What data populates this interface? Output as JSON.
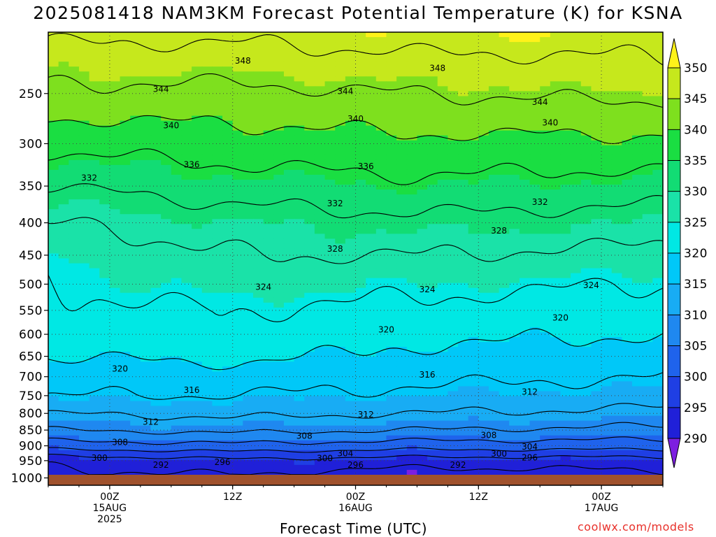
{
  "title": "2025081418 NAM3KM Forecast Potential Temperature (K) for KSNA",
  "xlabel": "Forecast Time (UTC)",
  "credit": "coolwx.com/models",
  "chart_data": {
    "type": "heatmap",
    "title": "2025081418 NAM3KM Forecast Potential Temperature (K) for KSNA",
    "xlabel": "Forecast Time (UTC)",
    "ylabel": "",
    "y_axis": "pressure (hPa), log scale, decreasing upward",
    "yticks": [
      250,
      300,
      350,
      400,
      450,
      500,
      550,
      600,
      650,
      700,
      750,
      800,
      850,
      900,
      950,
      1000
    ],
    "xticks": [
      {
        "hour": 6,
        "lines": [
          "00Z",
          "15AUG",
          "2025"
        ]
      },
      {
        "hour": 18,
        "lines": [
          "12Z"
        ]
      },
      {
        "hour": 30,
        "lines": [
          "00Z",
          "16AUG"
        ]
      },
      {
        "hour": 42,
        "lines": [
          "12Z"
        ]
      },
      {
        "hour": 54,
        "lines": [
          "00Z",
          "17AUG"
        ]
      }
    ],
    "xlim_hours": [
      0,
      60
    ],
    "ylim_hpa": [
      1000,
      200
    ],
    "grid": true,
    "colorbar": {
      "levels": [
        290,
        295,
        300,
        305,
        310,
        315,
        320,
        325,
        330,
        335,
        340,
        345,
        350
      ],
      "labels": [
        "350",
        "345",
        "340",
        "335",
        "330",
        "325",
        "320",
        "315",
        "310",
        "305",
        "300",
        "295",
        "290"
      ],
      "colors": [
        "#7d1fe0",
        "#2020d8",
        "#1f3fe4",
        "#1f63ec",
        "#1f88f0",
        "#18acf4",
        "#00c8f8",
        "#00e8e4",
        "#1ae2a8",
        "#12dc74",
        "#1ade42",
        "#7ee01e",
        "#c6e81c",
        "#fff21a"
      ]
    },
    "contour_values": [
      292,
      296,
      300,
      304,
      308,
      312,
      316,
      320,
      324,
      328,
      332,
      336,
      340,
      344,
      348
    ],
    "theta_profile_K": {
      "pressure_hpa": [
        1000,
        950,
        900,
        850,
        800,
        750,
        700,
        650,
        600,
        550,
        500,
        450,
        400,
        350,
        300,
        250,
        200
      ],
      "hour_0": [
        291,
        293,
        302,
        308,
        312,
        316,
        318,
        320,
        322,
        323,
        324,
        325,
        328,
        332,
        337,
        343,
        349
      ],
      "hour_18": [
        292,
        295,
        303,
        309,
        313,
        316,
        318,
        321,
        323,
        324,
        326,
        328,
        330,
        334,
        338,
        343,
        349
      ],
      "hour_36": [
        290,
        294,
        302,
        308,
        312,
        315,
        317,
        319,
        321,
        323,
        325,
        328,
        331,
        335,
        339,
        344,
        350
      ],
      "hour_60": [
        291,
        294,
        302,
        307,
        311,
        314,
        316,
        318,
        320,
        322,
        324,
        327,
        330,
        334,
        339,
        345,
        350
      ]
    },
    "contour_labels": [
      {
        "text": "348",
        "hour": 19,
        "hpa": 222
      },
      {
        "text": "348",
        "hour": 38,
        "hpa": 228
      },
      {
        "text": "344",
        "hour": 11,
        "hpa": 246
      },
      {
        "text": "344",
        "hour": 29,
        "hpa": 248
      },
      {
        "text": "344",
        "hour": 48,
        "hpa": 258
      },
      {
        "text": "340",
        "hour": 12,
        "hpa": 281
      },
      {
        "text": "340",
        "hour": 30,
        "hpa": 274
      },
      {
        "text": "340",
        "hour": 49,
        "hpa": 278
      },
      {
        "text": "336",
        "hour": 14,
        "hpa": 324
      },
      {
        "text": "336",
        "hour": 31,
        "hpa": 326
      },
      {
        "text": "332",
        "hour": 4,
        "hpa": 340
      },
      {
        "text": "332",
        "hour": 28,
        "hpa": 373
      },
      {
        "text": "332",
        "hour": 48,
        "hpa": 371
      },
      {
        "text": "328",
        "hour": 28,
        "hpa": 440
      },
      {
        "text": "328",
        "hour": 44,
        "hpa": 412
      },
      {
        "text": "324",
        "hour": 21,
        "hpa": 505
      },
      {
        "text": "324",
        "hour": 37,
        "hpa": 510
      },
      {
        "text": "324",
        "hour": 53,
        "hpa": 502
      },
      {
        "text": "320",
        "hour": 7,
        "hpa": 680
      },
      {
        "text": "320",
        "hour": 33,
        "hpa": 590
      },
      {
        "text": "320",
        "hour": 50,
        "hpa": 565
      },
      {
        "text": "316",
        "hour": 14,
        "hpa": 735
      },
      {
        "text": "316",
        "hour": 37,
        "hpa": 695
      },
      {
        "text": "312",
        "hour": 10,
        "hpa": 825
      },
      {
        "text": "312",
        "hour": 31,
        "hpa": 804
      },
      {
        "text": "312",
        "hour": 47,
        "hpa": 740
      },
      {
        "text": "308",
        "hour": 7,
        "hpa": 888
      },
      {
        "text": "308",
        "hour": 25,
        "hpa": 868
      },
      {
        "text": "308",
        "hour": 43,
        "hpa": 866
      },
      {
        "text": "304",
        "hour": 29,
        "hpa": 925
      },
      {
        "text": "304",
        "hour": 47,
        "hpa": 903
      },
      {
        "text": "300",
        "hour": 5,
        "hpa": 941
      },
      {
        "text": "300",
        "hour": 27,
        "hpa": 942
      },
      {
        "text": "300",
        "hour": 44,
        "hpa": 927
      },
      {
        "text": "296",
        "hour": 30,
        "hpa": 965
      },
      {
        "text": "296",
        "hour": 47,
        "hpa": 940
      },
      {
        "text": "296",
        "hour": 17,
        "hpa": 955
      },
      {
        "text": "292",
        "hour": 11,
        "hpa": 965
      },
      {
        "text": "292",
        "hour": 40,
        "hpa": 965
      }
    ]
  }
}
